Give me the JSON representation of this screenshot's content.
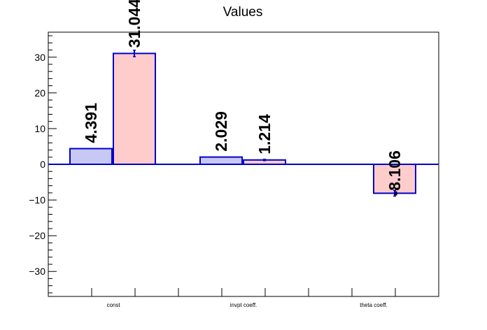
{
  "chart_data": {
    "type": "bar",
    "title": "Values",
    "categories": [
      "const",
      "invpt coeff.",
      "theta coeff."
    ],
    "series": [
      {
        "values": [
          4.391,
          2.029,
          null
        ],
        "errors": [
          0,
          0,
          0
        ],
        "color": "#c8c8f5",
        "edge_color": "#0000cc"
      },
      {
        "values": [
          31.044,
          1.214,
          -8.106
        ],
        "errors": [
          0.9,
          0.2,
          0.8
        ],
        "color": "#ffcccc",
        "edge_color": "#0000cc"
      }
    ],
    "data_labels": [
      "4.391",
      "31.044",
      "2.029",
      "1.214",
      "-8.106"
    ],
    "yticks": [
      -30,
      -20,
      -10,
      0,
      10,
      20,
      30
    ],
    "ytick_labels": [
      "−30",
      "−20",
      "−10",
      "0",
      "10",
      "20",
      "30"
    ],
    "ylim": [
      -37,
      37
    ],
    "xlabel": "",
    "ylabel": "",
    "grid": false,
    "legend": "none",
    "zero_line_color": "#0000cc"
  }
}
